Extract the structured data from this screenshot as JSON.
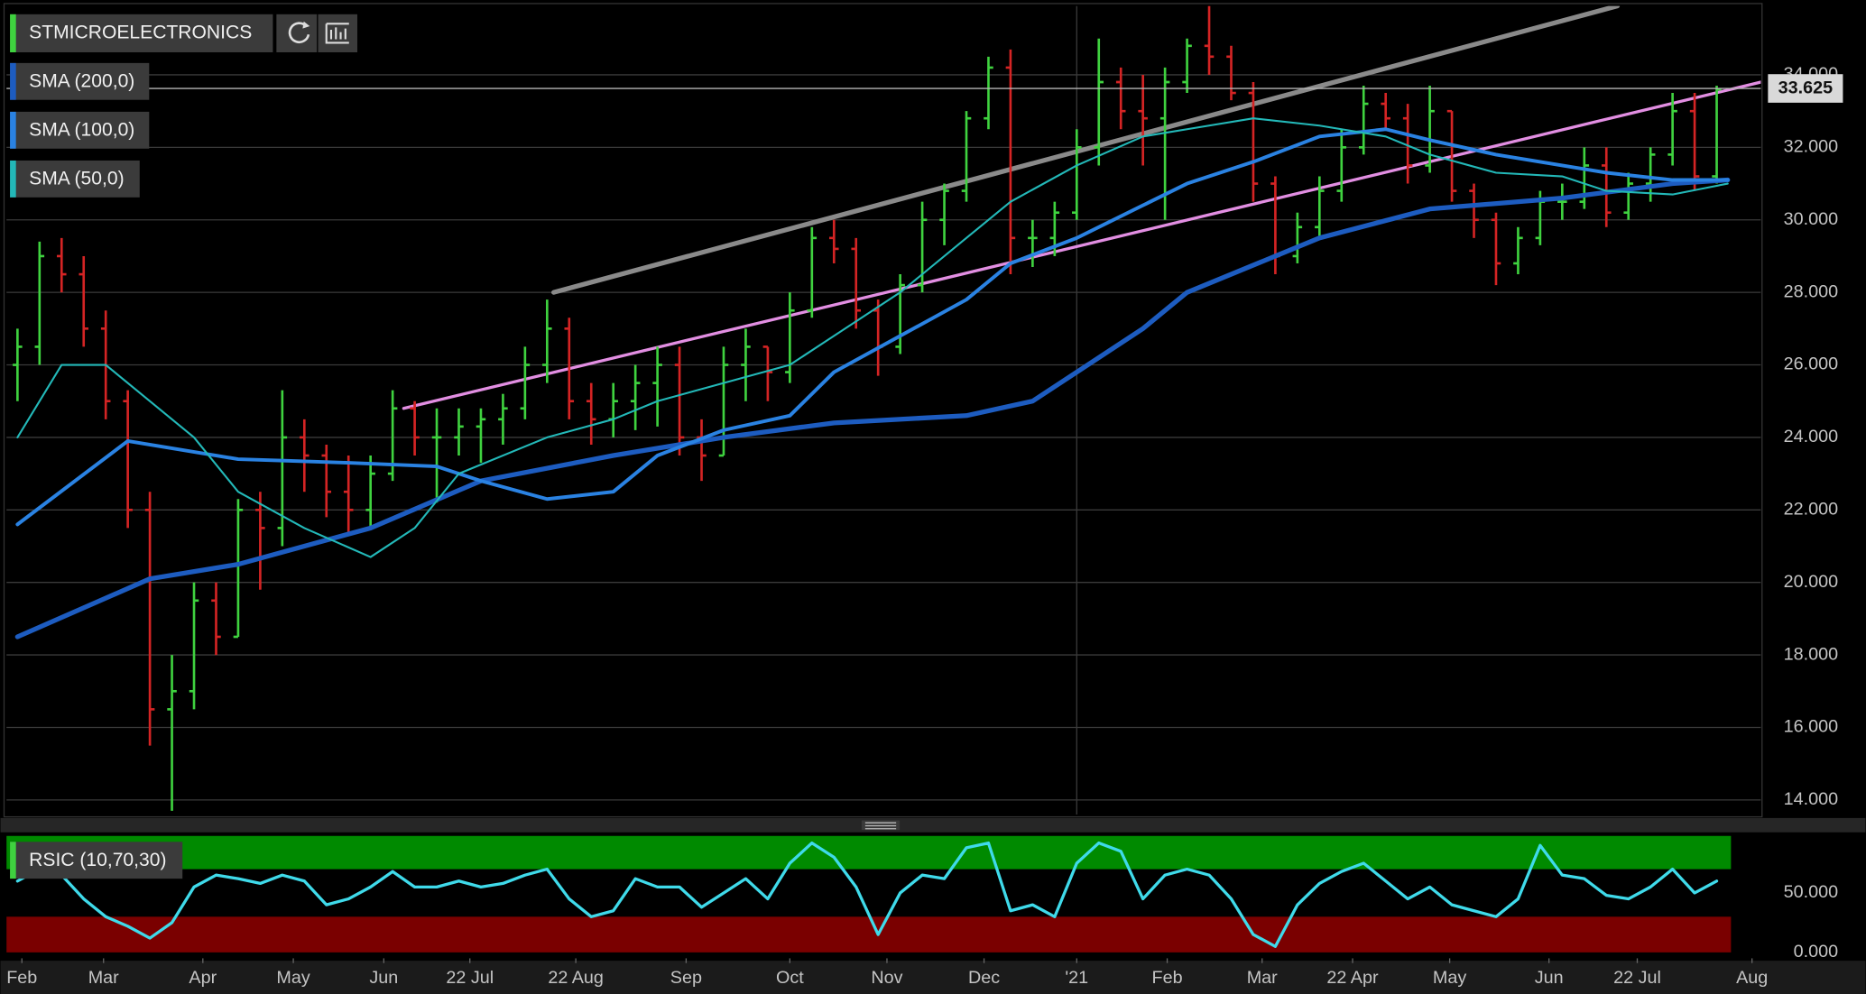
{
  "chart_data": [
    {
      "type": "ohlc",
      "xlim": [
        -0.5,
        79
      ],
      "ylim": [
        13.6,
        35.9
      ],
      "yticks": [
        {
          "value": 14,
          "label": "14.000"
        },
        {
          "value": 16,
          "label": "16.000"
        },
        {
          "value": 18,
          "label": "18.000"
        },
        {
          "value": 20,
          "label": "20.000"
        },
        {
          "value": 22,
          "label": "22.000"
        },
        {
          "value": 24,
          "label": "24.000"
        },
        {
          "value": 26,
          "label": "26.000"
        },
        {
          "value": 28,
          "label": "28.000"
        },
        {
          "value": 30,
          "label": "30.000"
        },
        {
          "value": 32,
          "label": "32.000"
        },
        {
          "value": 34,
          "label": "34.000"
        }
      ],
      "grid": true,
      "vline_x": 48,
      "last": {
        "value": 33.625,
        "label": "33.625"
      },
      "x": [
        0,
        1,
        2,
        3,
        4,
        5,
        6,
        7,
        8,
        9,
        10,
        11,
        12,
        13,
        14,
        15,
        16,
        17,
        18,
        19,
        20,
        21,
        22,
        23,
        24,
        25,
        26,
        27,
        28,
        29,
        30,
        31,
        32,
        33,
        34,
        35,
        36,
        37,
        38,
        39,
        40,
        41,
        42,
        43,
        44,
        45,
        46,
        47,
        48,
        49,
        50,
        51,
        52,
        53,
        54,
        55,
        56,
        57,
        58,
        59,
        60,
        61,
        62,
        63,
        64,
        65,
        66,
        67,
        68,
        69,
        70,
        71,
        72,
        73,
        74,
        75,
        76,
        77
      ],
      "series": [
        {
          "name": "STMICROELECTRONICS",
          "color_up": "#3fd23f",
          "color_down": "#d42424",
          "open": [
            26,
            26.5,
            29,
            28.5,
            27,
            25,
            22,
            16.5,
            17,
            19.5,
            18.5,
            22,
            21.5,
            24,
            23.5,
            22.5,
            22,
            23,
            24.8,
            24,
            24,
            24.3,
            24.5,
            24.8,
            26,
            27,
            25,
            24.5,
            25,
            25.5,
            26,
            24,
            23.5,
            26,
            26.5,
            25.8,
            27.5,
            29.5,
            29.2,
            27.5,
            26.5,
            28.2,
            30,
            30.8,
            32.8,
            34.2,
            29.5,
            29.5,
            30.2,
            32,
            33.8,
            33,
            32.8,
            33.8,
            34.8,
            34.5,
            33.5,
            31,
            29,
            29.8,
            30.8,
            32,
            33.2,
            32.8,
            31.5,
            33,
            30.8,
            30,
            28.8,
            29.5,
            30.5,
            30.5,
            31.5,
            30.2,
            31,
            31.8,
            33,
            31.2
          ],
          "high": [
            27,
            29.4,
            29.5,
            29,
            27.5,
            25.3,
            22.5,
            18,
            20,
            20,
            22.3,
            22.5,
            25.3,
            24.5,
            23.8,
            23.5,
            23.5,
            25.3,
            25,
            24.8,
            24.8,
            24.8,
            25.2,
            26.5,
            27.8,
            27.3,
            25.5,
            25.5,
            26,
            26.5,
            26.5,
            24.5,
            26.5,
            27,
            26.5,
            28,
            29.8,
            30,
            29.5,
            27.8,
            28.5,
            30.5,
            31,
            33,
            34.5,
            34.7,
            30,
            30.5,
            32.5,
            35,
            34.2,
            34,
            34.2,
            35,
            35.9,
            34.8,
            33.8,
            31.2,
            30.2,
            31.2,
            32.5,
            33.7,
            33.5,
            33.2,
            33.7,
            33,
            31,
            30.2,
            29.8,
            30.8,
            31,
            32,
            32,
            31.3,
            32,
            33.5,
            33.5,
            33.7
          ],
          "low": [
            25,
            26,
            28,
            26.5,
            24.5,
            21.5,
            15.5,
            13.7,
            16.5,
            18,
            18.5,
            19.8,
            21,
            22.5,
            21.8,
            21.3,
            21.5,
            22.8,
            23.5,
            22.2,
            23.5,
            23.3,
            23.8,
            24.5,
            25.5,
            24.5,
            23.8,
            24,
            24.2,
            24.3,
            23.5,
            22.8,
            23.5,
            25,
            25,
            25.5,
            27.3,
            28.8,
            27,
            25.7,
            26.3,
            28,
            29.3,
            30.5,
            32.5,
            28.5,
            28.7,
            29,
            30,
            31.5,
            32.5,
            31.5,
            30,
            33.5,
            34,
            33.3,
            30.5,
            28.5,
            28.8,
            29.5,
            30.5,
            31.8,
            32.5,
            31,
            31.3,
            30.5,
            29.5,
            28.2,
            28.5,
            29.3,
            30,
            30.3,
            29.8,
            30,
            30.5,
            31.5,
            30.8,
            31
          ],
          "close": [
            26.5,
            29,
            28.5,
            27,
            25,
            22,
            16.5,
            17,
            19.5,
            18.5,
            22,
            21.5,
            24,
            23.5,
            22.5,
            22,
            23,
            24.8,
            24,
            24,
            24.3,
            24.5,
            24.8,
            26,
            27,
            25,
            24.5,
            25,
            25.5,
            26,
            24,
            23.5,
            26,
            26.5,
            25.8,
            27.5,
            29.5,
            29.2,
            27.5,
            26.5,
            28.2,
            30,
            30.8,
            32.8,
            34.2,
            29.5,
            29.5,
            30.2,
            32,
            33.8,
            33,
            32.8,
            33.8,
            34.8,
            34.5,
            33.5,
            31,
            29,
            29.8,
            30.8,
            32,
            33.2,
            32.8,
            31.5,
            33,
            30.8,
            30,
            28.8,
            29.5,
            30.5,
            30.5,
            31.5,
            30.2,
            31,
            31.8,
            33,
            31.2,
            33.6
          ]
        },
        {
          "name": "SMA (200,0)",
          "color": "#1d5cc0",
          "width": 4,
          "x": [
            0,
            6,
            10,
            16,
            21,
            27,
            32,
            37,
            43,
            46,
            48,
            51,
            53,
            57,
            59,
            64,
            70,
            75,
            77.5
          ],
          "values": [
            18.5,
            20.1,
            20.5,
            21.5,
            22.8,
            23.5,
            24,
            24.4,
            24.6,
            25,
            25.8,
            27,
            28,
            29,
            29.5,
            30.3,
            30.6,
            31,
            31.1
          ]
        },
        {
          "name": "SMA (100,0)",
          "color": "#2a82e2",
          "width": 3,
          "x": [
            0,
            5,
            10,
            15,
            19,
            21,
            24,
            27,
            29,
            32,
            35,
            37,
            40,
            43,
            45,
            48,
            51,
            53,
            56,
            59,
            62,
            64,
            67,
            70,
            72,
            75,
            77.5
          ],
          "values": [
            21.6,
            23.9,
            23.4,
            23.3,
            23.2,
            22.8,
            22.3,
            22.5,
            23.5,
            24.2,
            24.6,
            25.8,
            26.8,
            27.8,
            28.8,
            29.5,
            30.4,
            31,
            31.6,
            32.3,
            32.5,
            32.2,
            31.8,
            31.5,
            31.3,
            31.1,
            31.1
          ]
        },
        {
          "name": "SMA (50,0)",
          "color": "#23b8b8",
          "width": 1.6,
          "x": [
            0,
            2,
            4,
            8,
            10,
            13,
            16,
            18,
            20,
            24,
            27,
            29,
            32,
            35,
            37,
            40,
            43,
            45,
            48,
            51,
            53,
            56,
            59,
            62,
            64,
            67,
            70,
            72,
            75,
            77.5
          ],
          "values": [
            24,
            26,
            26,
            24,
            22.5,
            21.5,
            20.7,
            21.5,
            23,
            24,
            24.5,
            25,
            25.5,
            26,
            26.8,
            28,
            29.5,
            30.5,
            31.5,
            32.3,
            32.5,
            32.8,
            32.6,
            32.3,
            31.8,
            31.3,
            31.2,
            30.8,
            30.7,
            31
          ]
        }
      ],
      "trendlines": [
        {
          "color": "#8a8a8a",
          "width": 4,
          "x": [
            24.3,
            72.5
          ],
          "values": [
            28,
            35.9
          ]
        },
        {
          "color": "#e28ee2",
          "width": 2.5,
          "x": [
            17.5,
            79
          ],
          "values": [
            24.8,
            33.8
          ]
        }
      ]
    },
    {
      "type": "line",
      "xlim": [
        -0.5,
        79
      ],
      "ylim": [
        -4,
        98
      ],
      "yticks": [
        {
          "value": 0,
          "label": "0.000"
        },
        {
          "value": 50,
          "label": "50.000"
        }
      ],
      "xticks": [
        {
          "value": 0.2,
          "label": "Feb"
        },
        {
          "value": 3.9,
          "label": "Mar"
        },
        {
          "value": 8.4,
          "label": "Apr"
        },
        {
          "value": 12.5,
          "label": "May"
        },
        {
          "value": 16.6,
          "label": "Jun"
        },
        {
          "value": 20.5,
          "label": "22 Jul"
        },
        {
          "value": 25.3,
          "label": "22 Aug"
        },
        {
          "value": 30.3,
          "label": "Sep"
        },
        {
          "value": 35,
          "label": "Oct"
        },
        {
          "value": 39.4,
          "label": "Nov"
        },
        {
          "value": 43.8,
          "label": "Dec"
        },
        {
          "value": 48,
          "label": "'21"
        },
        {
          "value": 52.1,
          "label": "Feb"
        },
        {
          "value": 56.4,
          "label": "Mar"
        },
        {
          "value": 60.5,
          "label": "22 Apr"
        },
        {
          "value": 64.9,
          "label": "May"
        },
        {
          "value": 69.4,
          "label": "Jun"
        },
        {
          "value": 73.4,
          "label": "22 Jul"
        },
        {
          "value": 78.6,
          "label": "Aug"
        }
      ],
      "bands": [
        {
          "from": 70,
          "to": 98,
          "color": "#008a00"
        },
        {
          "from": 0,
          "to": 30,
          "color": "#7a0000"
        }
      ],
      "x": [
        0,
        1,
        2,
        3,
        4,
        5,
        6,
        7,
        8,
        9,
        10,
        11,
        12,
        13,
        14,
        15,
        16,
        17,
        18,
        19,
        20,
        21,
        22,
        23,
        24,
        25,
        26,
        27,
        28,
        29,
        30,
        31,
        32,
        33,
        34,
        35,
        36,
        37,
        38,
        39,
        40,
        41,
        42,
        43,
        44,
        45,
        46,
        47,
        48,
        49,
        50,
        51,
        52,
        53,
        54,
        55,
        56,
        57,
        58,
        59,
        60,
        61,
        62,
        63,
        64,
        65,
        66,
        67,
        68,
        69,
        70,
        71,
        72,
        73,
        74,
        75,
        76,
        77
      ],
      "series": [
        {
          "name": "RSIC (10,70,30)",
          "color": "#3fdaea",
          "width": 2.5,
          "values": [
            60,
            70,
            65,
            45,
            30,
            22,
            12,
            25,
            55,
            65,
            62,
            58,
            65,
            60,
            40,
            45,
            55,
            68,
            55,
            55,
            60,
            55,
            58,
            65,
            70,
            45,
            30,
            35,
            62,
            55,
            55,
            38,
            50,
            62,
            45,
            75,
            92,
            80,
            55,
            15,
            50,
            65,
            62,
            88,
            92,
            35,
            40,
            30,
            75,
            92,
            85,
            45,
            65,
            70,
            65,
            45,
            15,
            5,
            40,
            58,
            68,
            75,
            60,
            45,
            55,
            40,
            35,
            30,
            45,
            90,
            65,
            62,
            48,
            45,
            55,
            70,
            50,
            60
          ]
        }
      ]
    }
  ]
}
